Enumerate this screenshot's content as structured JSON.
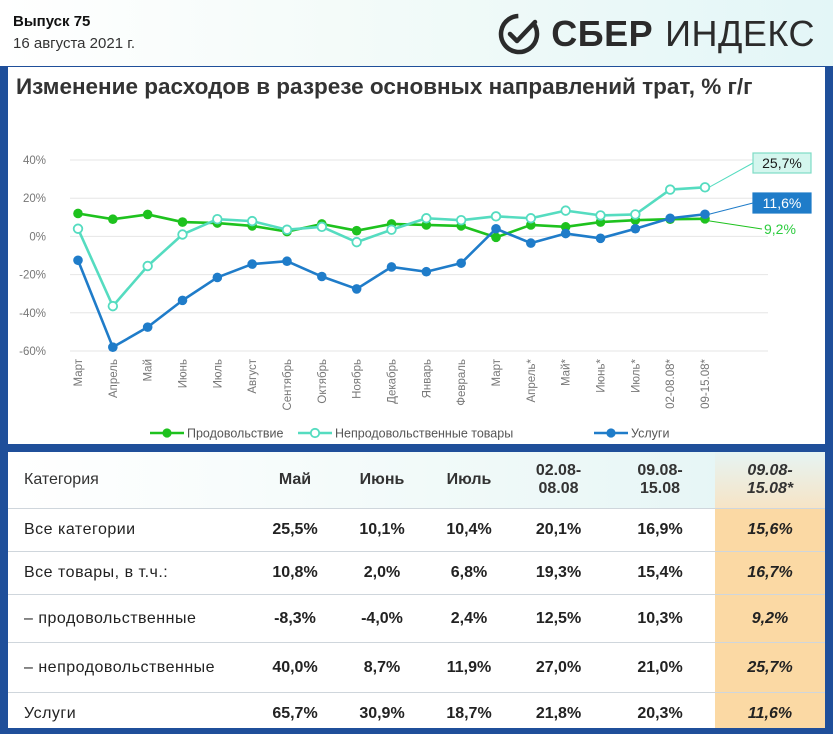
{
  "header": {
    "issue": "Выпуск 75",
    "date": "16 августа 2021 г.",
    "logo_sber": "СБЕР",
    "logo_index": "ИНДЕКС"
  },
  "chart": {
    "title": "Изменение расходов в разрезе основных направлений трат, % г/г"
  },
  "chart_data": {
    "type": "line",
    "title": "Изменение расходов в разрезе основных направлений трат, % г/г",
    "categories": [
      "Март",
      "Апрель",
      "Май",
      "Июнь",
      "Июль",
      "Август",
      "Сентябрь",
      "Октябрь",
      "Ноябрь",
      "Декабрь",
      "Январь",
      "Февраль",
      "Март",
      "Апрель*",
      "Май*",
      "Июнь*",
      "Июль*",
      "02-08.08*",
      "09-15.08*"
    ],
    "y_ticks": [
      "40%",
      "20%",
      "0%",
      "-20%",
      "-40%",
      "-60%"
    ],
    "ylim": [
      -60,
      40
    ],
    "grid": true,
    "legend_position": "bottom",
    "series": [
      {
        "name": "Продовольствие",
        "color": "#1ec21e",
        "marker": "filled",
        "values": [
          12,
          9,
          11.5,
          7.5,
          7,
          5.5,
          2.5,
          6.5,
          3,
          6.5,
          6,
          5.5,
          -0.5,
          6,
          5,
          7.5,
          8.5,
          9,
          9.2
        ]
      },
      {
        "name": "Непродовольственные товары",
        "color": "#55dcc0",
        "marker": "hollow",
        "values": [
          4,
          -36.5,
          -15.5,
          1,
          9,
          8,
          3.5,
          5,
          -3,
          3.5,
          9.5,
          8.5,
          10.5,
          9.5,
          13.5,
          11,
          11.5,
          24.5,
          25.7
        ]
      },
      {
        "name": "Услуги",
        "color": "#1f7cc9",
        "marker": "filled",
        "values": [
          -12.5,
          -58,
          -47.5,
          -33.5,
          -21.5,
          -14.5,
          -13,
          -21,
          -27.5,
          -16,
          -18.5,
          -14,
          4,
          -3.5,
          1.5,
          -1,
          4,
          9.5,
          11.6
        ]
      }
    ],
    "end_labels": [
      {
        "text": "25,7%",
        "series": "Непродовольственные товары",
        "style": "box",
        "fill": "#d4f6ee",
        "stroke": "#7fdcc6",
        "color": "#1a1a1a"
      },
      {
        "text": "11,6%",
        "series": "Услуги",
        "style": "box",
        "fill": "#1f7cc9",
        "stroke": "#1f7cc9",
        "color": "#ffffff"
      },
      {
        "text": "9,2%",
        "series": "Продовольствие",
        "style": "text",
        "color": "#2ecc40"
      }
    ]
  },
  "table": {
    "headers": [
      "Категория",
      "Май",
      "Июнь",
      "Июль",
      "02.08-\n08.08",
      "09.08-\n15.08",
      "09.08-\n15.08*"
    ],
    "rows": [
      [
        "Все категории",
        "25,5%",
        "10,1%",
        "10,4%",
        "20,1%",
        "16,9%",
        "15,6%"
      ],
      [
        "Все товары, в т.ч.:",
        "10,8%",
        "2,0%",
        "6,8%",
        "19,3%",
        "15,4%",
        "16,7%"
      ],
      [
        "– продовольственные",
        "-8,3%",
        "-4,0%",
        "2,4%",
        "12,5%",
        "10,3%",
        "9,2%"
      ],
      [
        "– непродовольственные",
        "40,0%",
        "8,7%",
        "11,9%",
        "27,0%",
        "21,0%",
        "25,7%"
      ],
      [
        "Услуги",
        "65,7%",
        "30,9%",
        "18,7%",
        "21,8%",
        "20,3%",
        "11,6%"
      ]
    ]
  }
}
